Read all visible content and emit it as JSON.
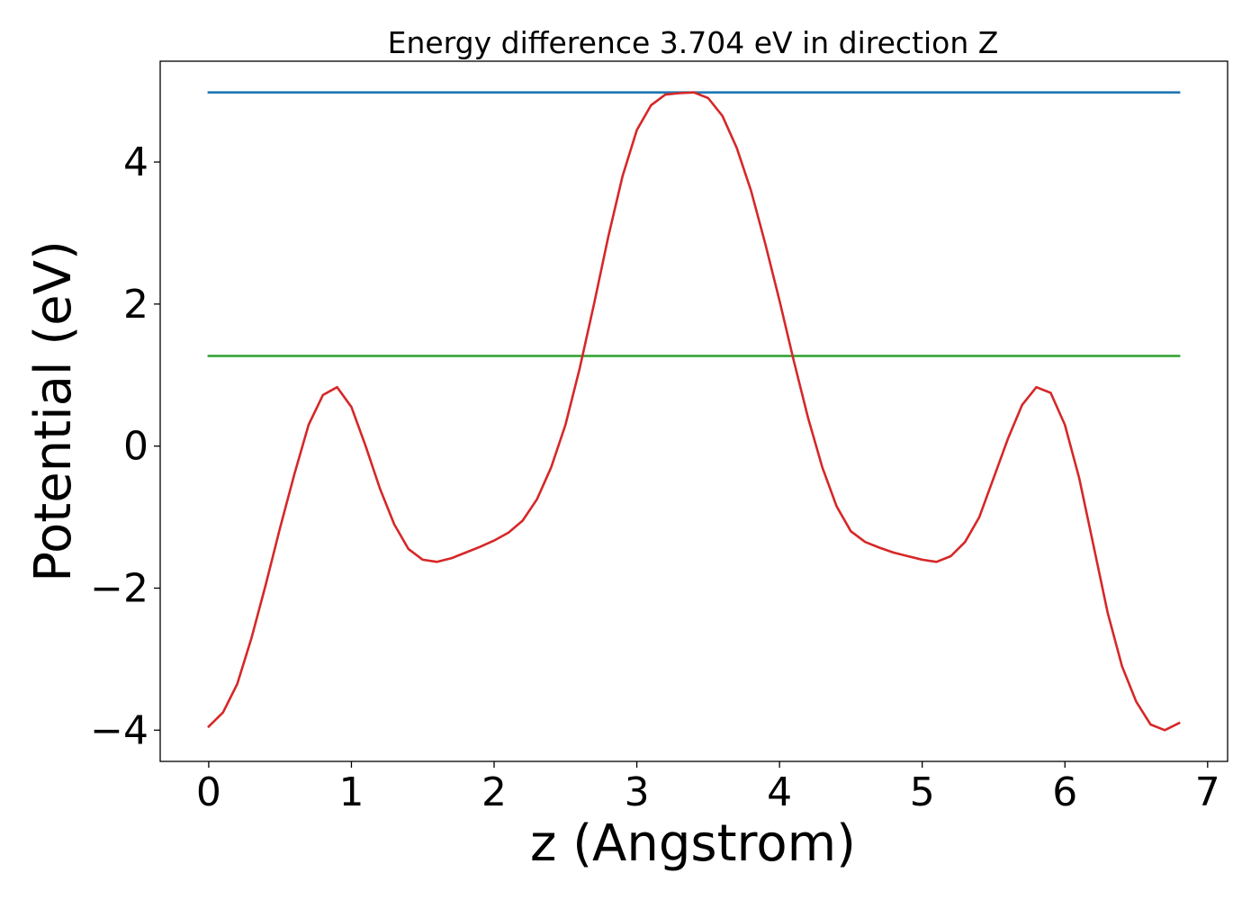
{
  "chart_data": {
    "type": "line",
    "title": "Energy difference 3.704 eV in direction Z",
    "xlabel": "z (Angstrom)",
    "ylabel": "Potential (eV)",
    "xlim": [
      -0.34,
      7.14
    ],
    "ylim": [
      -4.44,
      5.42
    ],
    "grid": false,
    "x_ticks": [
      0,
      1,
      2,
      3,
      4,
      5,
      6,
      7
    ],
    "x_tick_labels": [
      "0",
      "1",
      "2",
      "3",
      "4",
      "5",
      "6",
      "7"
    ],
    "y_ticks": [
      -4,
      -2,
      0,
      2,
      4
    ],
    "y_tick_labels": [
      "−4",
      "−2",
      "0",
      "2",
      "4"
    ],
    "series": [
      {
        "color": "#1f77b4",
        "x": [
          0,
          6.8
        ],
        "y": [
          4.98,
          4.98
        ]
      },
      {
        "color": "#2ca02c",
        "x": [
          0,
          6.8
        ],
        "y": [
          1.27,
          1.27
        ]
      },
      {
        "color": "#d62728",
        "x": [
          0,
          0.1,
          0.2,
          0.3,
          0.4,
          0.5,
          0.6,
          0.7,
          0.8,
          0.9,
          1.0,
          1.1,
          1.2,
          1.3,
          1.4,
          1.5,
          1.6,
          1.7,
          1.8,
          1.9,
          2.0,
          2.1,
          2.2,
          2.3,
          2.4,
          2.5,
          2.6,
          2.7,
          2.8,
          2.9,
          3.0,
          3.1,
          3.2,
          3.3,
          3.4,
          3.5,
          3.6,
          3.7,
          3.8,
          3.9,
          4.0,
          4.1,
          4.2,
          4.3,
          4.4,
          4.5,
          4.6,
          4.7,
          4.8,
          4.9,
          5.0,
          5.1,
          5.2,
          5.3,
          5.4,
          5.5,
          5.6,
          5.7,
          5.8,
          5.9,
          6.0,
          6.1,
          6.2,
          6.3,
          6.4,
          6.5,
          6.6,
          6.7,
          6.8
        ],
        "y": [
          -3.95,
          -3.75,
          -3.35,
          -2.7,
          -1.95,
          -1.15,
          -0.4,
          0.3,
          0.72,
          0.83,
          0.55,
          0.0,
          -0.6,
          -1.1,
          -1.45,
          -1.6,
          -1.63,
          -1.58,
          -1.5,
          -1.42,
          -1.33,
          -1.22,
          -1.05,
          -0.75,
          -0.3,
          0.3,
          1.1,
          2.0,
          2.95,
          3.8,
          4.45,
          4.8,
          4.95,
          4.97,
          4.98,
          4.9,
          4.65,
          4.2,
          3.6,
          2.85,
          2.05,
          1.2,
          0.4,
          -0.3,
          -0.85,
          -1.2,
          -1.35,
          -1.43,
          -1.5,
          -1.55,
          -1.6,
          -1.63,
          -1.55,
          -1.35,
          -1.0,
          -0.45,
          0.1,
          0.58,
          0.83,
          0.75,
          0.3,
          -0.45,
          -1.4,
          -2.35,
          -3.1,
          -3.6,
          -3.92,
          -4.0,
          -3.9
        ]
      }
    ]
  }
}
